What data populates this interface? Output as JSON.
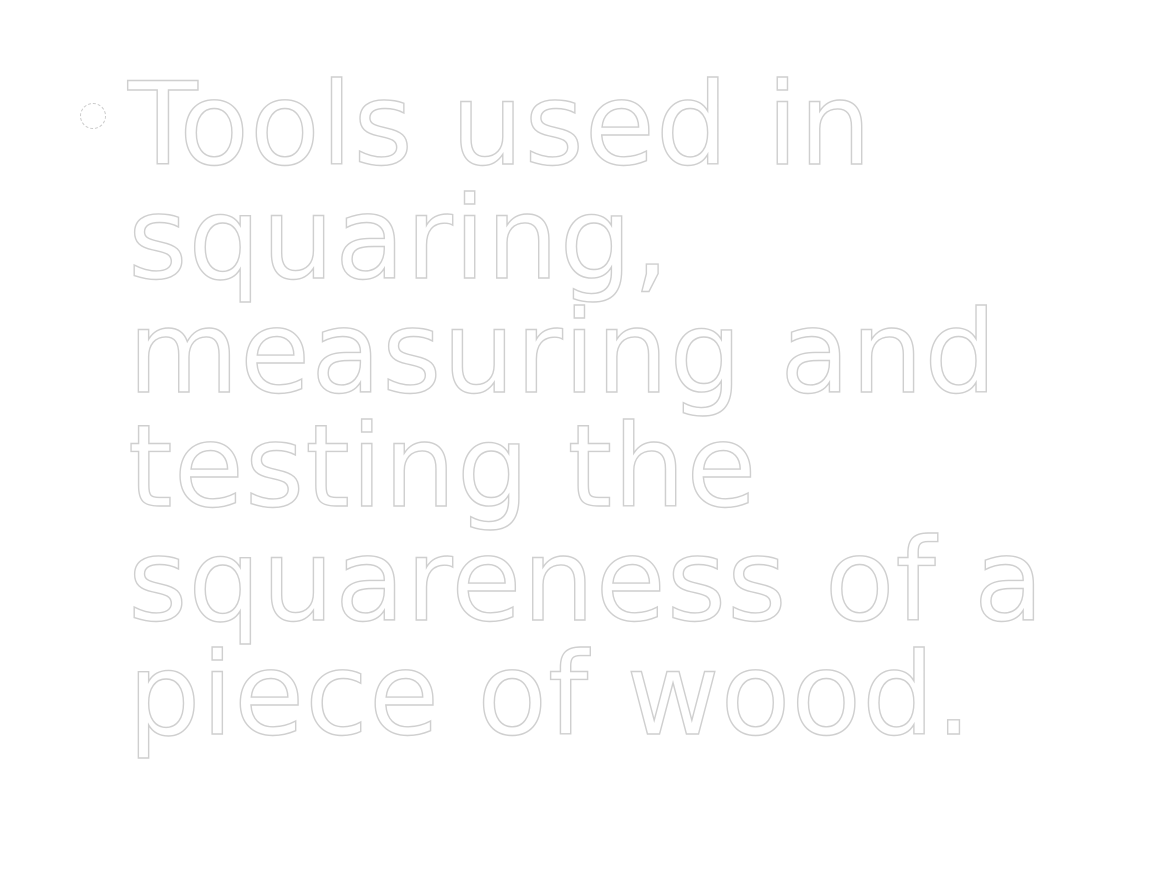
{
  "slide": {
    "bullets": [
      {
        "text": "Tools used in squaring, measuring and testing the squareness of a piece of wood."
      }
    ]
  }
}
